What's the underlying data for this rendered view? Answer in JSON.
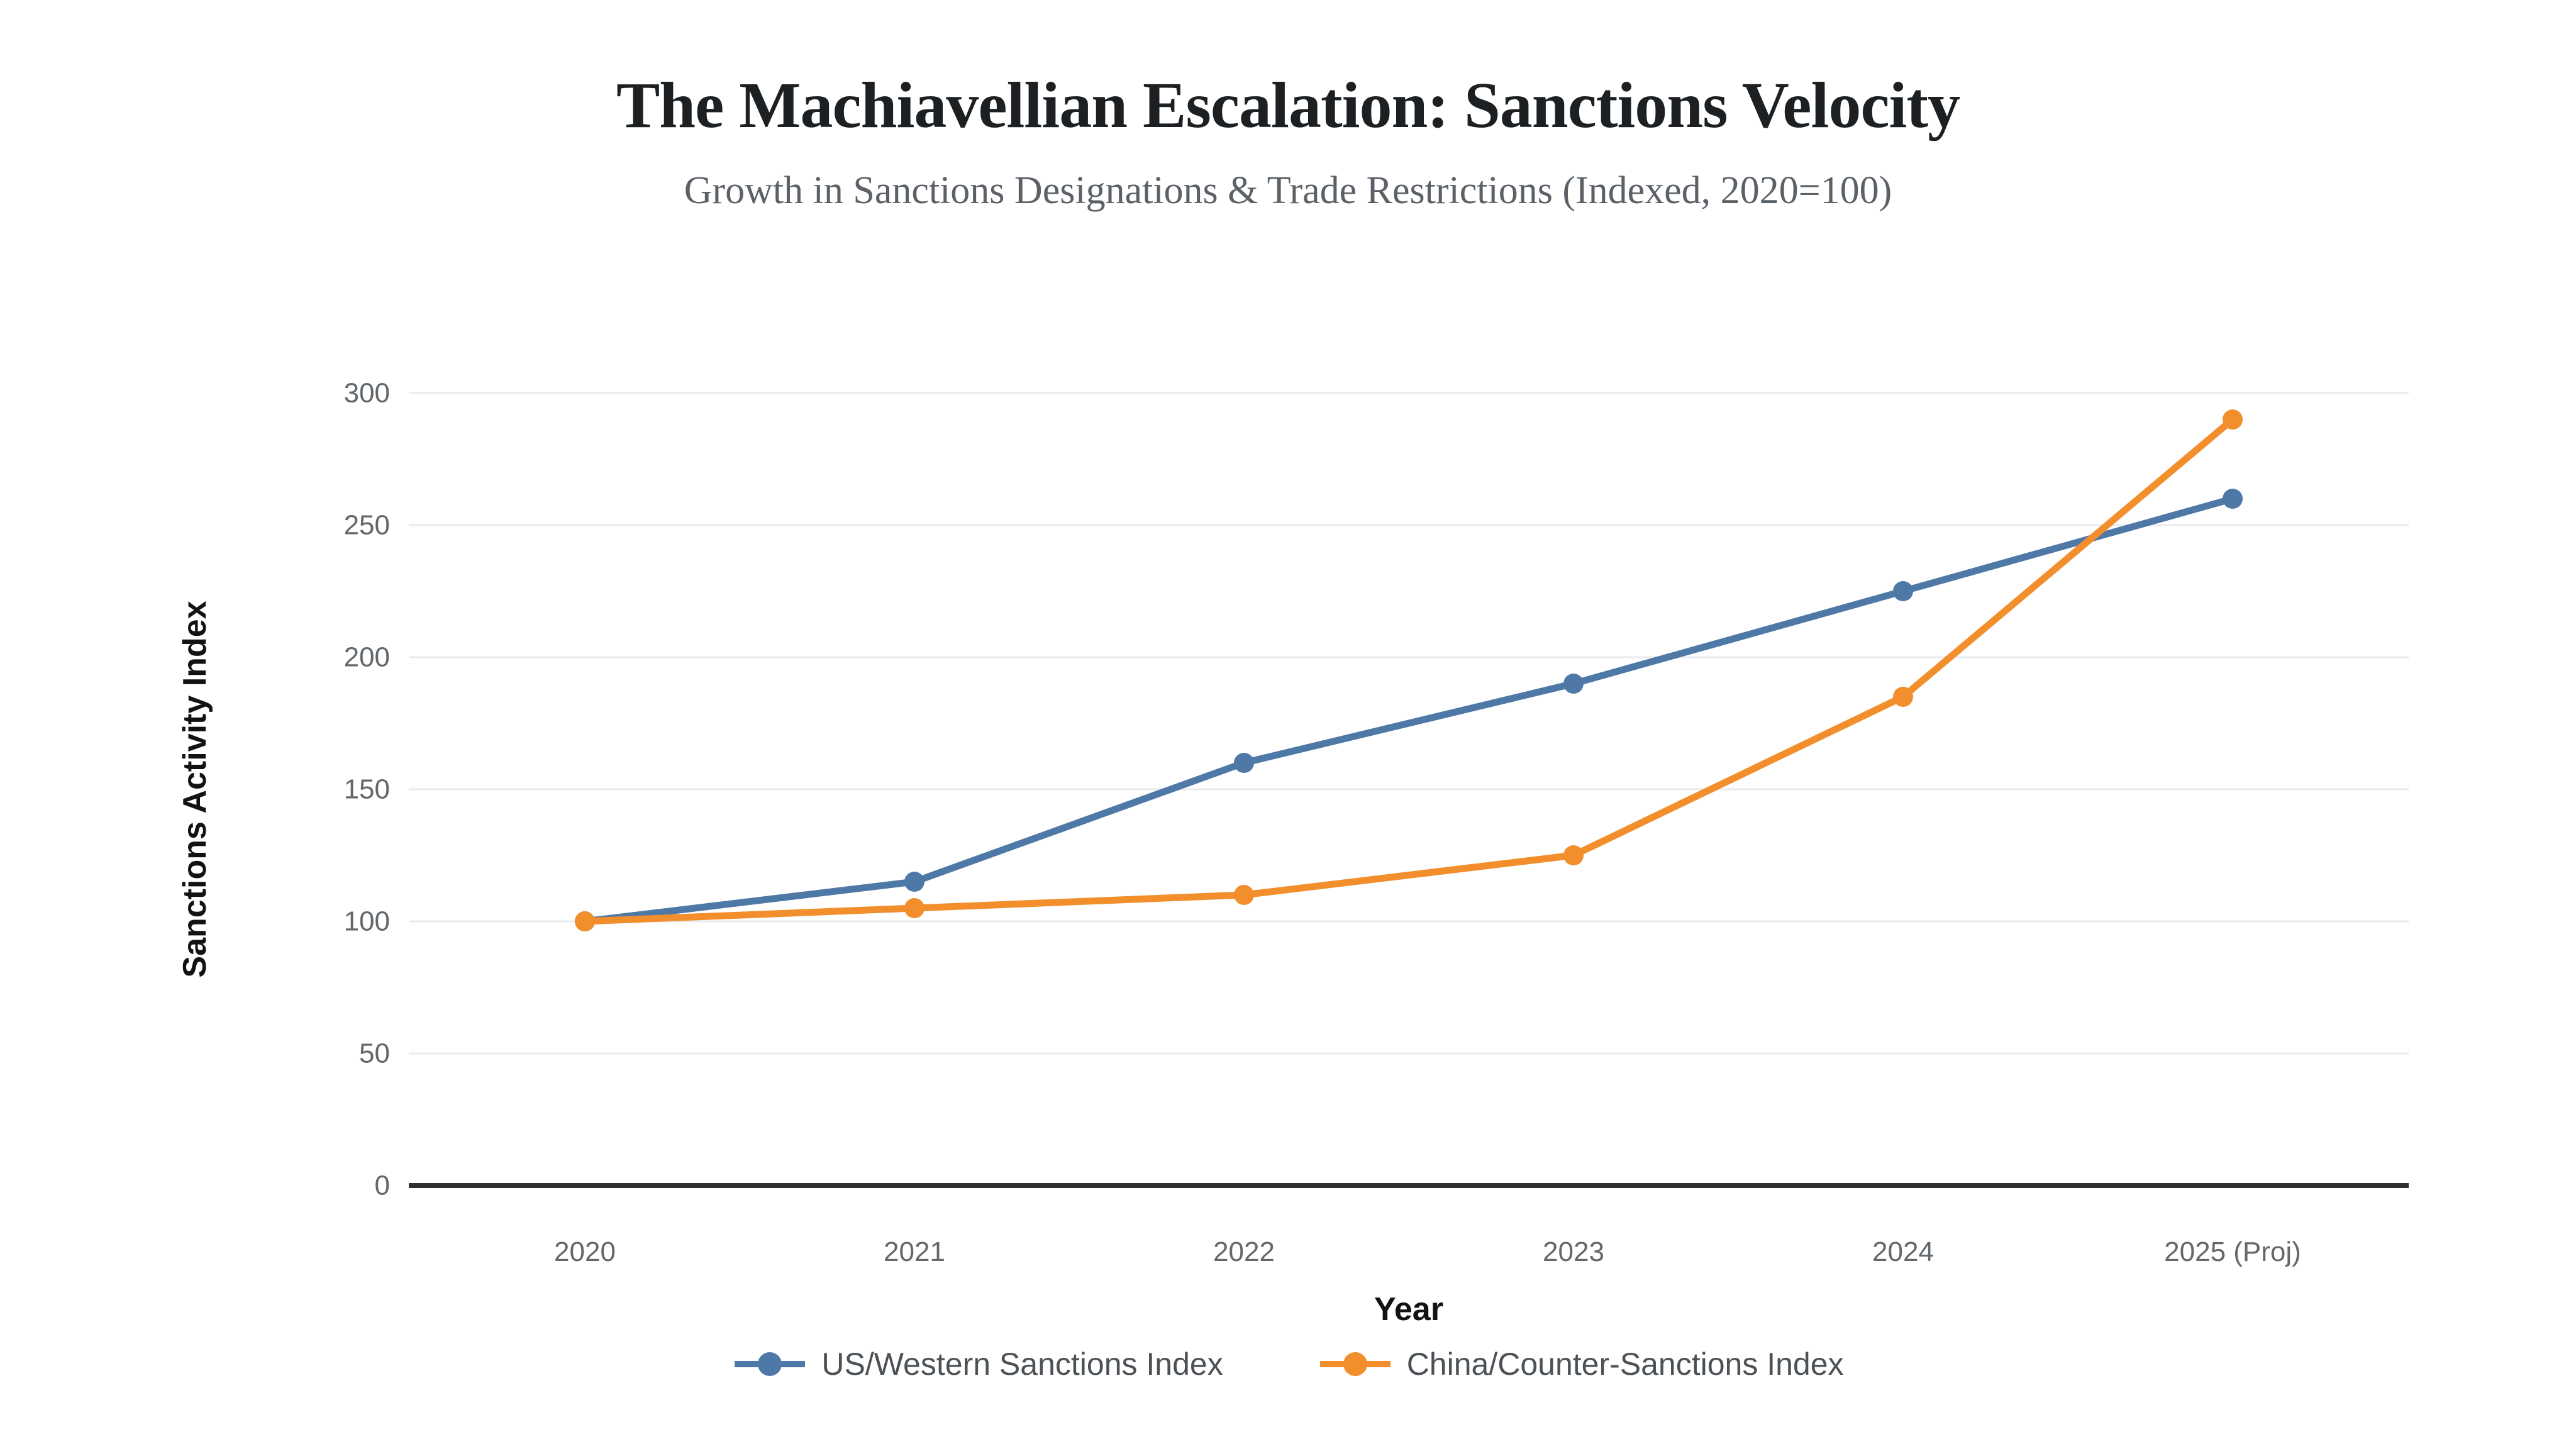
{
  "header": {
    "title": "The Machiavellian Escalation: Sanctions Velocity",
    "subtitle": "Growth in Sanctions Designations & Trade Restrictions (Indexed, 2020=100)"
  },
  "chart_data": {
    "type": "line",
    "title": "The Machiavellian Escalation: Sanctions Velocity",
    "subtitle": "Growth in Sanctions Designations & Trade Restrictions (Indexed, 2020=100)",
    "xlabel": "Year",
    "ylabel": "Sanctions Activity Index",
    "categories": [
      "2020",
      "2021",
      "2022",
      "2023",
      "2024",
      "2025 (Proj)"
    ],
    "series": [
      {
        "name": "US/Western Sanctions Index",
        "color": "#4E79A7",
        "values": [
          100,
          115,
          160,
          190,
          225,
          260
        ]
      },
      {
        "name": "China/Counter-Sanctions Index",
        "color": "#F28E2B",
        "values": [
          100,
          105,
          110,
          125,
          185,
          290
        ]
      }
    ],
    "ylim": [
      0,
      300
    ],
    "yticks": [
      0,
      50,
      100,
      150,
      200,
      250,
      300
    ],
    "grid": true,
    "legend_position": "bottom"
  },
  "style": {
    "background": "#ffffff",
    "grid_color": "#e9ebee",
    "axis_line_color": "#2e2f31",
    "tick_label_color": "#63686d",
    "title_color": "#1d2023",
    "subtitle_color": "#5b6167",
    "legend_text_color": "#4c5156"
  }
}
